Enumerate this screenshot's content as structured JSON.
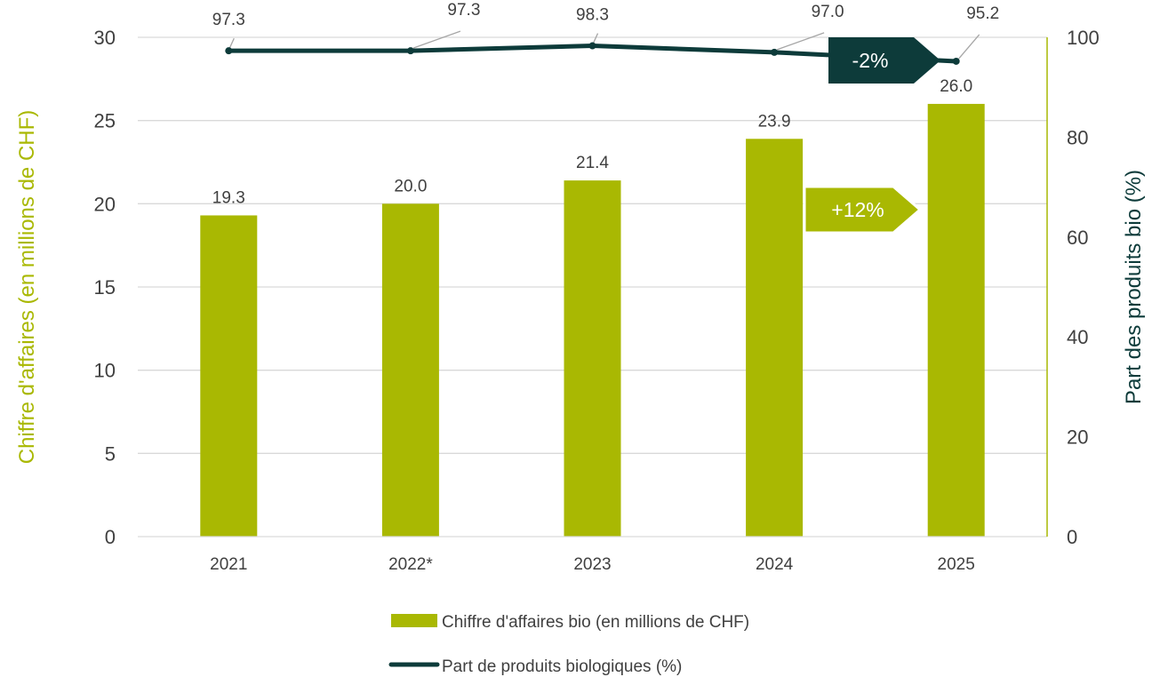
{
  "chart_data": {
    "type": "bar",
    "categories": [
      "2021",
      "2022*",
      "2023",
      "2024",
      "2025"
    ],
    "series": [
      {
        "name": "Chiffre d'affaires bio (en millions de CHF)",
        "type": "bar",
        "axis": "left",
        "values": [
          19.3,
          20.0,
          21.4,
          23.9,
          26.0
        ],
        "labels": [
          "19.3",
          "20.0",
          "21.4",
          "23.9",
          "26.0"
        ]
      },
      {
        "name": "Part de produits biologiques (%)",
        "type": "line",
        "axis": "right",
        "values": [
          97.3,
          97.3,
          98.3,
          97.0,
          95.2
        ],
        "labels": [
          "97.3",
          "97.3",
          "98.3",
          "97.0",
          "95.2"
        ]
      }
    ],
    "ylabel": "Chiffre d'affaires (en millions de CHF)",
    "y2label": "Part des produits bio (%)",
    "ylim": [
      0,
      30
    ],
    "y2lim": [
      0,
      100
    ],
    "yticks": [
      "0",
      "5",
      "10",
      "15",
      "20",
      "25",
      "30"
    ],
    "y2ticks": [
      "0",
      "20",
      "40",
      "60",
      "80",
      "100"
    ],
    "grid": true,
    "legend": "bottom",
    "annotations": [
      {
        "text": "+12%",
        "style": "bar-callout"
      },
      {
        "text": "-2%",
        "style": "line-callout"
      }
    ],
    "colors": {
      "bar": "#a9b802",
      "line": "#0d3b3a",
      "grid": "#d9d9d9",
      "tick_text": "#404040",
      "leader": "#a6a6a6"
    }
  }
}
